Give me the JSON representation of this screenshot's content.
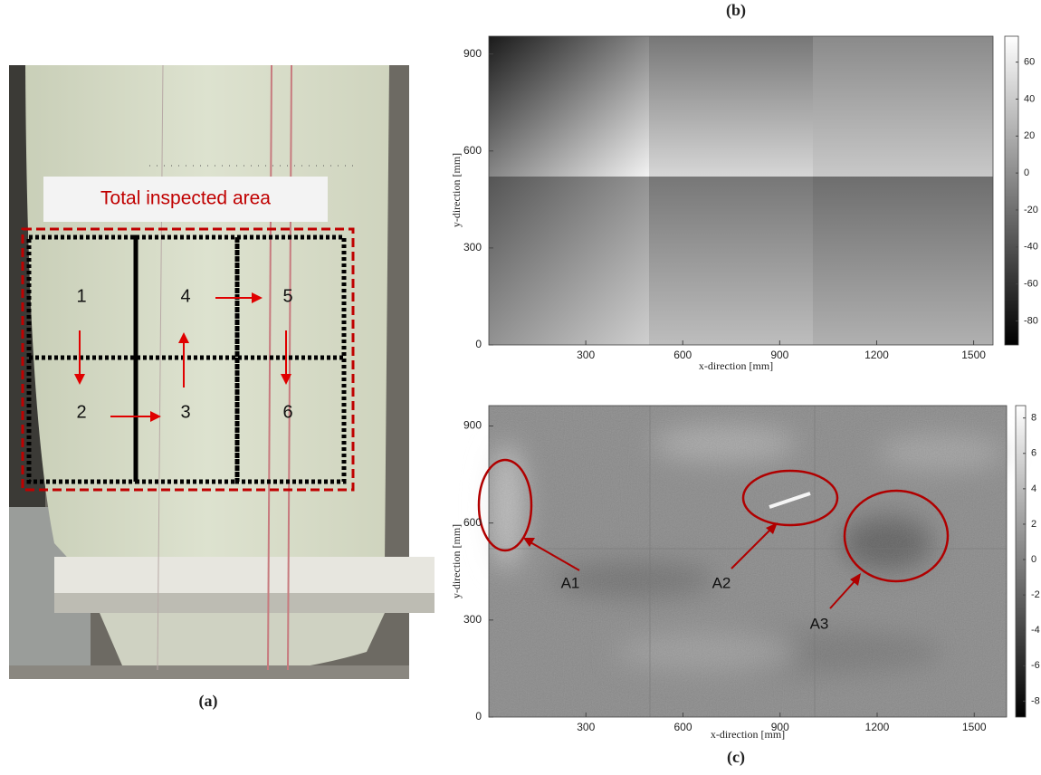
{
  "panels": {
    "a": {
      "label": "(a)",
      "photo_title": "Total inspected area",
      "regions": [
        "1",
        "2",
        "3",
        "4",
        "5",
        "6"
      ]
    },
    "b": {
      "label": "(b)",
      "x_label": "x-direction [mm]",
      "y_label": "y-direction [mm]",
      "xlim": [
        0,
        1560
      ],
      "ylim": [
        0,
        955
      ],
      "xticks": [
        300,
        600,
        900,
        1200,
        1500
      ],
      "yticks": [
        0,
        300,
        600,
        900
      ],
      "clim": [
        -93,
        74
      ],
      "cticks": [
        60,
        40,
        20,
        0,
        -20,
        -40,
        -60,
        -80
      ]
    },
    "c": {
      "label": "(c)",
      "x_label": "x-direction [mm]",
      "y_label": "y-direction [mm]",
      "xlim": [
        0,
        1600
      ],
      "ylim": [
        0,
        963
      ],
      "xticks": [
        300,
        600,
        900,
        1200,
        1500
      ],
      "yticks": [
        0,
        300,
        600,
        900
      ],
      "clim": [
        -8.9,
        8.7
      ],
      "cticks": [
        8,
        6,
        4,
        2,
        0,
        -2,
        -4,
        -6,
        -8
      ],
      "annotations": [
        "A1",
        "A2",
        "A3"
      ]
    }
  }
}
